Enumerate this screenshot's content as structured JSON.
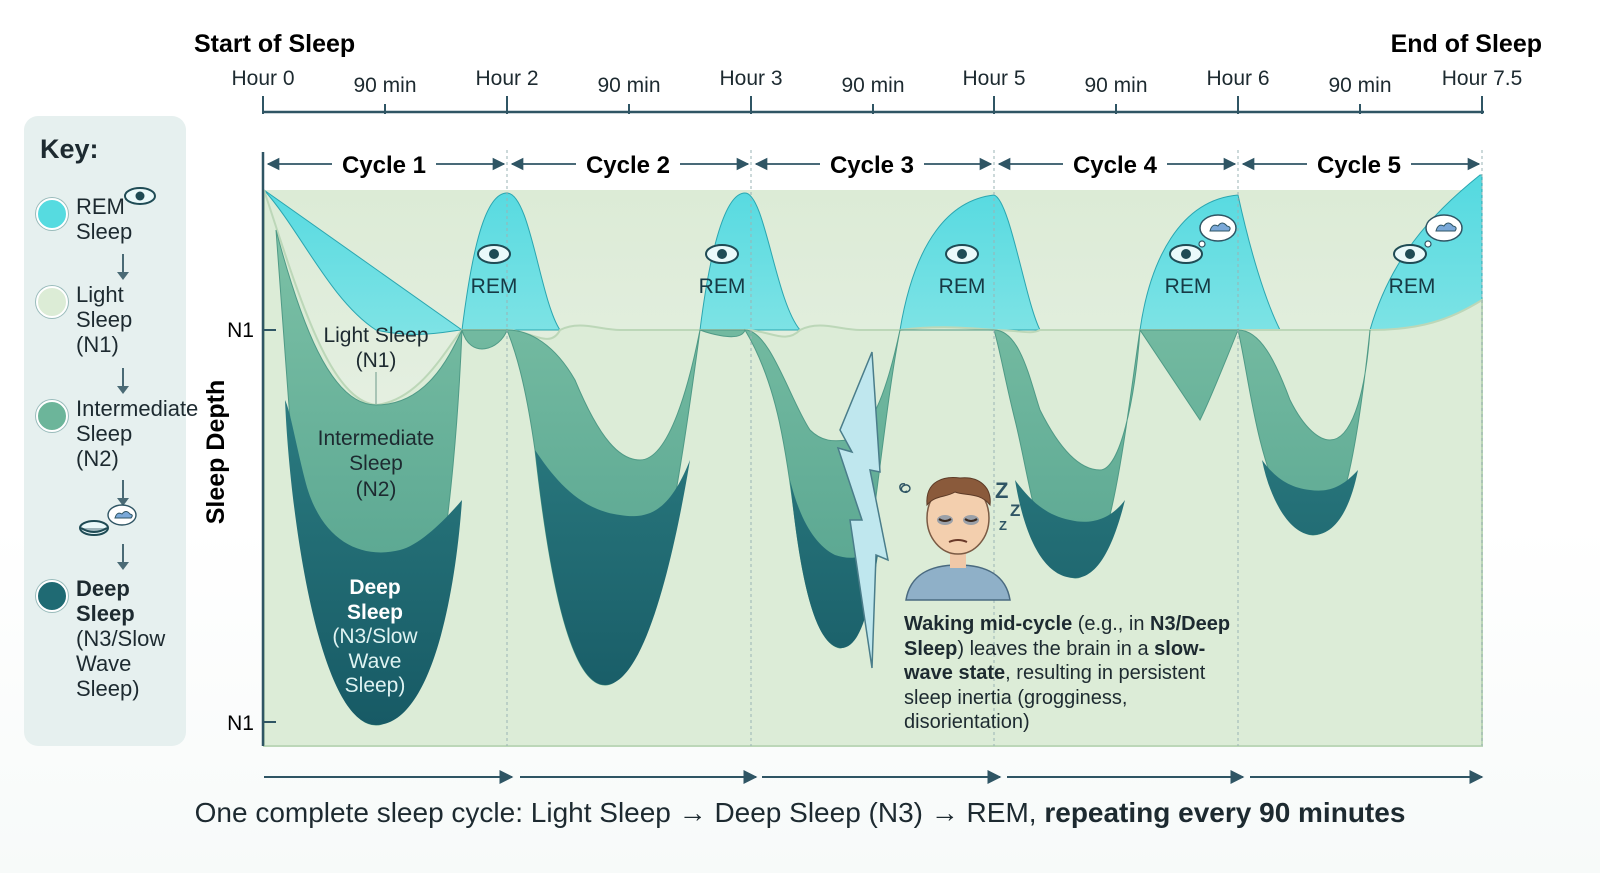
{
  "header": {
    "start_label": "Start of Sleep",
    "end_label": "End of Sleep",
    "ticks": [
      "Hour 0",
      "90 min",
      "Hour 2",
      "90 min",
      "Hour 3",
      "90 min",
      "Hour 5",
      "90 min",
      "Hour 6",
      "90 min",
      "Hour 7.5"
    ]
  },
  "cycles": [
    "Cycle 1",
    "Cycle 2",
    "Cycle 3",
    "Cycle 4",
    "Cycle 5"
  ],
  "axis": {
    "ylabel": "Sleep Depth",
    "top_tick": "N1",
    "bottom_tick": "N1"
  },
  "stage_labels": {
    "light_1": "Light Sleep",
    "light_2": "(N1)",
    "inter_1": "Intermediate",
    "inter_2": "Sleep",
    "inter_3": "(N2)",
    "deep_1": "Deep",
    "deep_2": "Sleep",
    "deep_3": "(N3/Slow",
    "deep_4": "Wave",
    "deep_5": "Sleep)",
    "rem": "REM"
  },
  "key": {
    "title": "Key:",
    "rem": [
      "REM",
      "Sleep"
    ],
    "light": [
      "Light",
      "Sleep",
      "(N1)"
    ],
    "inter": [
      "Intermediate",
      "Sleep",
      "(N2)"
    ],
    "deep": [
      "Deep",
      "Sleep",
      "(N3/Slow",
      "Wave",
      "Sleep)"
    ]
  },
  "note": {
    "b1": "Waking mid-cycle",
    "t1": " (e.g., in ",
    "b2": "N3/Deep Sleep",
    "t2": ") leaves the brain in a ",
    "b3": "slow-wave state",
    "t3": ", resulting in persistent sleep inertia (grogginess, disorientation)"
  },
  "footer": {
    "plain": "One complete sleep cycle: Light Sleep → Deep Sleep (N3) → REM, ",
    "bold": "repeating every 90 minutes"
  },
  "colors": {
    "rem": "#56dbe0",
    "light": "#dcecd8",
    "inter": "#6cb59a",
    "deep": "#1f6a73",
    "axis": "#2f5564"
  }
}
